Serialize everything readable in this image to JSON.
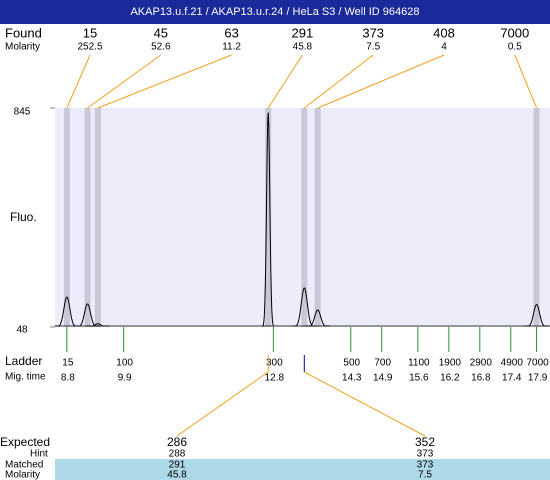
{
  "title": "AKAP13.u.f.21 / AKAP13.u.r.24 / HeLa S3 / Well ID 964628",
  "chart_data": {
    "type": "electropherogram",
    "y_label": "Fluo.",
    "ylim": [
      48,
      845
    ],
    "yticks": [
      48,
      845
    ],
    "xlim": [
      8.57,
      18.16
    ],
    "found_label": "Found",
    "molarity_label": "Molarity",
    "found": {
      "sizes": [
        15,
        45,
        63,
        291,
        373,
        408,
        7000
      ],
      "molarity": [
        252.5,
        52.6,
        11.2,
        45.8,
        7.5,
        4,
        0.5
      ],
      "x": [
        8.8,
        9.2,
        9.4,
        12.7,
        13.4,
        13.66,
        17.9
      ],
      "heights": [
        157,
        132,
        60,
        830,
        190,
        110,
        130
      ]
    },
    "ladder_label": "Ladder",
    "mig_time_label": "Mig. time",
    "ladder": {
      "sizes": [
        15,
        100,
        300,
        500,
        700,
        1100,
        1900,
        2900,
        4900,
        7000
      ],
      "mig_times": [
        8.8,
        9.9,
        12.8,
        14.3,
        14.9,
        15.6,
        16.2,
        16.8,
        17.4,
        17.9
      ]
    },
    "expected_label": "Expected",
    "hint_label": "Hint",
    "matched_label": "Matched",
    "expected": {
      "sizes": [
        286,
        352
      ],
      "hint": [
        288,
        373
      ],
      "matched": [
        291,
        373
      ],
      "molarity": [
        45.8,
        7.5
      ]
    }
  }
}
